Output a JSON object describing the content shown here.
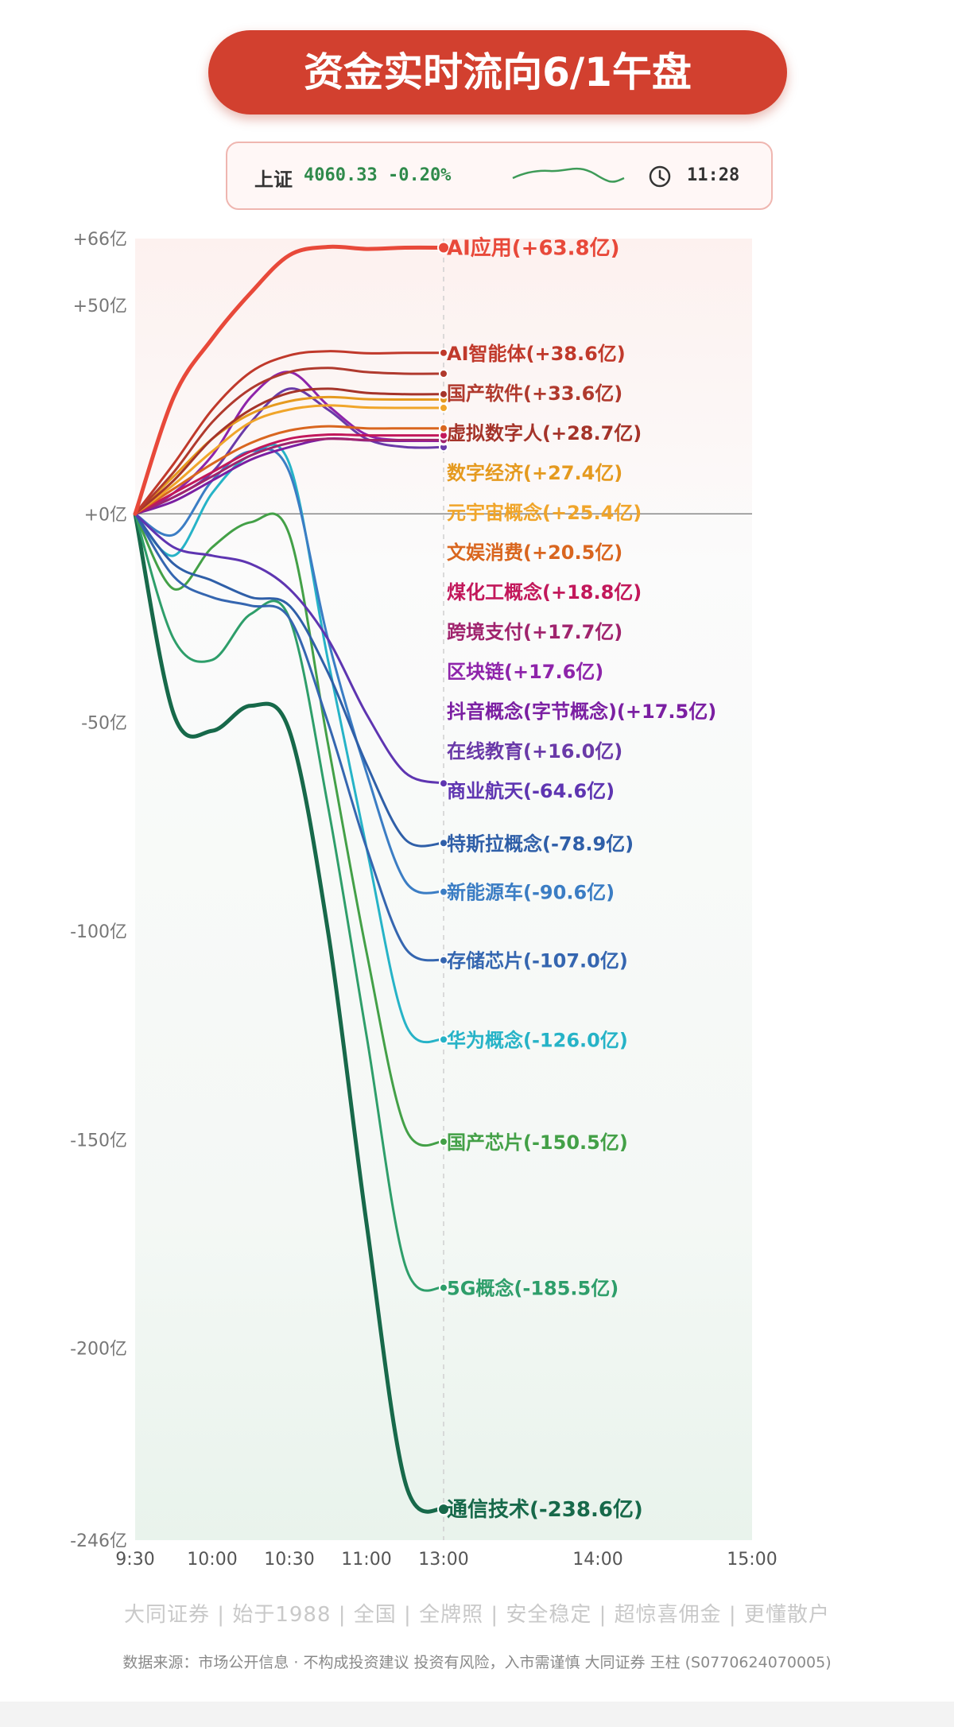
{
  "title": "资金实时流向6/1午盘",
  "ticker": {
    "index_name": "上证",
    "value_text": "4060.33 -0.20%",
    "time": "11:28",
    "accent": "#2f8a4b"
  },
  "icons": [
    "sparkline-icon",
    "clock-icon"
  ],
  "chart_data": {
    "type": "line",
    "title": "",
    "xlabel": "",
    "ylabel": "",
    "unit": "亿",
    "x_ticks": [
      "9:30",
      "10:00",
      "10:30",
      "11:00",
      "13:00",
      "14:00",
      "15:00"
    ],
    "y_ticks": [
      {
        "value": 66,
        "label": "+66亿"
      },
      {
        "value": 50,
        "label": "+50亿"
      },
      {
        "value": 0,
        "label": "+0亿"
      },
      {
        "value": -50,
        "label": "-50亿"
      },
      {
        "value": -100,
        "label": "-100亿"
      },
      {
        "value": -150,
        "label": "-150亿"
      },
      {
        "value": -200,
        "label": "-200亿"
      },
      {
        "value": -246,
        "label": "-246亿"
      }
    ],
    "ylim": [
      -246,
      66
    ],
    "x_time_points": [
      "9:30",
      "9:45",
      "10:00",
      "10:15",
      "10:30",
      "10:45",
      "11:00",
      "11:15",
      "11:30"
    ],
    "end_time": "11:30",
    "grid": false,
    "series": [
      {
        "name": "AI应用",
        "label": "AI应用(+63.8亿)",
        "final": 63.8,
        "color": "#e8493a",
        "values": [
          0,
          28,
          42,
          53,
          62,
          64,
          63.5,
          63.8,
          63.8
        ]
      },
      {
        "name": "AI智能体",
        "label": "AI智能体(+38.6亿)",
        "final": 38.6,
        "color": "#c0392b",
        "values": [
          0,
          12,
          25,
          34,
          38,
          39,
          38.5,
          38.6,
          38.6
        ]
      },
      {
        "name": "国产软件",
        "label": "国产软件(+33.6亿)",
        "final": 33.6,
        "color": "#b03a2e",
        "values": [
          0,
          10,
          22,
          30,
          34,
          35,
          34,
          33.6,
          33.6
        ]
      },
      {
        "name": "虚拟数字人",
        "label": "虚拟数字人(+28.7亿)",
        "final": 28.7,
        "color": "#a5342a",
        "values": [
          0,
          8,
          18,
          25,
          29,
          30,
          29,
          28.7,
          28.7
        ]
      },
      {
        "name": "数字经济",
        "label": "数字经济(+27.4亿)",
        "final": 27.4,
        "color": "#e59a1f",
        "values": [
          0,
          9,
          18,
          24,
          27,
          28,
          27.5,
          27.4,
          27.4
        ]
      },
      {
        "name": "元宇宙概念",
        "label": "元宇宙概念(+25.4亿)",
        "final": 25.4,
        "color": "#f0a52a",
        "values": [
          0,
          7,
          15,
          22,
          25,
          26,
          25.5,
          25.4,
          25.4
        ]
      },
      {
        "name": "文娱消费",
        "label": "文娱消费(+20.5亿)",
        "final": 20.5,
        "color": "#d9661f",
        "values": [
          0,
          6,
          12,
          17,
          20,
          21,
          20.5,
          20.5,
          20.5
        ]
      },
      {
        "name": "煤化工概念",
        "label": "煤化工概念(+18.8亿)",
        "final": 18.8,
        "color": "#c2185b",
        "values": [
          0,
          5,
          10,
          15,
          18,
          19,
          18.8,
          18.8,
          18.8
        ]
      },
      {
        "name": "跨境支付",
        "label": "跨境支付(+17.7亿)",
        "final": 17.7,
        "color": "#a0246e",
        "values": [
          0,
          4,
          9,
          14,
          17,
          18,
          17.7,
          17.7,
          17.7
        ]
      },
      {
        "name": "区块链",
        "label": "区块链(+17.6亿)",
        "final": 17.6,
        "color": "#8e24aa",
        "values": [
          0,
          5,
          14,
          28,
          34,
          26,
          19,
          17.6,
          17.6
        ]
      },
      {
        "name": "抖音概念(字节概念)",
        "label": "抖音概念(字节概念)(+17.5亿)",
        "final": 17.5,
        "color": "#7b1fa2",
        "values": [
          0,
          3,
          8,
          13,
          16,
          18,
          17.6,
          17.5,
          17.5
        ]
      },
      {
        "name": "在线教育",
        "label": "在线教育(+16.0亿)",
        "final": 16.0,
        "color": "#6a3aa8",
        "values": [
          0,
          4,
          10,
          22,
          30,
          25,
          18,
          16,
          16.0
        ]
      },
      {
        "name": "商业航天",
        "label": "商业航天(-64.6亿)",
        "final": -64.6,
        "color": "#5e35b1",
        "values": [
          0,
          -8,
          -10,
          -12,
          -18,
          -30,
          -48,
          -62,
          -64.6
        ]
      },
      {
        "name": "特斯拉概念",
        "label": "特斯拉概念(-78.9亿)",
        "final": -78.9,
        "color": "#2f5fa8",
        "values": [
          0,
          -12,
          -16,
          -20,
          -22,
          -38,
          -60,
          -78,
          -78.9
        ]
      },
      {
        "name": "新能源车",
        "label": "新能源车(-90.6亿)",
        "final": -90.6,
        "color": "#3b7dc4",
        "values": [
          0,
          -5,
          8,
          15,
          10,
          -30,
          -62,
          -88,
          -90.6
        ]
      },
      {
        "name": "存储芯片",
        "label": "存储芯片(-107.0亿)",
        "final": -107.0,
        "color": "#3566b0",
        "values": [
          0,
          -15,
          -20,
          -22,
          -25,
          -50,
          -80,
          -104,
          -107.0
        ]
      },
      {
        "name": "华为概念",
        "label": "华为概念(-126.0亿)",
        "final": -126.0,
        "color": "#26b3c7",
        "values": [
          0,
          -10,
          5,
          14,
          12,
          -35,
          -80,
          -122,
          -126.0
        ]
      },
      {
        "name": "国产芯片",
        "label": "国产芯片(-150.5亿)",
        "final": -150.5,
        "color": "#43a047",
        "values": [
          0,
          -18,
          -8,
          -2,
          -5,
          -55,
          -105,
          -147,
          -150.5
        ]
      },
      {
        "name": "5G概念",
        "label": "5G概念(-185.5亿)",
        "final": -185.5,
        "color": "#2e9e6a",
        "values": [
          0,
          -30,
          -35,
          -24,
          -25,
          -70,
          -125,
          -180,
          -185.5
        ]
      },
      {
        "name": "通信技术",
        "label": "通信技术(-238.6亿)",
        "final": -238.6,
        "color": "#17694a",
        "values": [
          0,
          -48,
          -52,
          -46,
          -52,
          -100,
          -170,
          -232,
          -238.6
        ]
      }
    ]
  },
  "footer": {
    "slogan": "大同证券 | 始于1988 | 全国 | 全牌照 | 安全稳定 | 超惊喜佣金 | 更懂散户",
    "note": "数据来源：市场公开信息 · 不构成投资建议      投资有风险，入市需谨慎      大同证券 王柱 (S0770624070005)"
  }
}
